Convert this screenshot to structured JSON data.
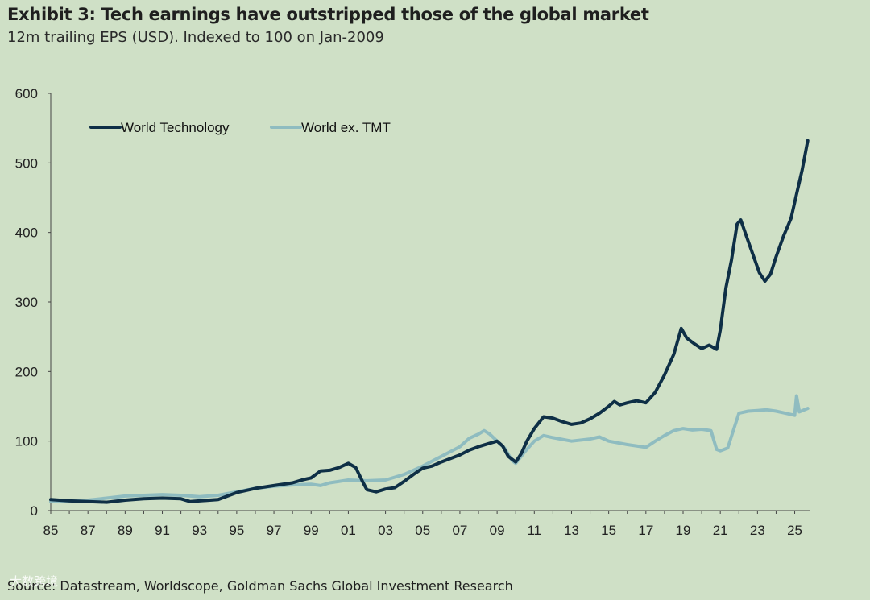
{
  "header": {
    "title": "Exhibit 3: Tech earnings have outstripped those of the global market",
    "subtitle": "12m trailing EPS (USD). Indexed to 100 on Jan-2009"
  },
  "footer": {
    "source": "Source: Datastream, Worldscope, Goldman Sachs Global Investment Research",
    "watermark": "大数跨境"
  },
  "colors": {
    "background": "#cfe0c6",
    "world_technology": "#0e2f46",
    "world_ex_tmt": "#8fbcc0",
    "axis": "#444444"
  },
  "chart_data": {
    "type": "line",
    "title": "Exhibit 3: Tech earnings have outstripped those of the global market",
    "subtitle": "12m trailing EPS (USD). Indexed to 100 on Jan-2009",
    "xlabel": "",
    "ylabel": "",
    "x_range": [
      1985,
      2025.8
    ],
    "ylim": [
      0,
      600
    ],
    "y_ticks": [
      0,
      100,
      200,
      300,
      400,
      500,
      600
    ],
    "x_tick_labels": [
      "85",
      "87",
      "89",
      "91",
      "93",
      "95",
      "97",
      "99",
      "01",
      "03",
      "05",
      "07",
      "09",
      "11",
      "13",
      "15",
      "17",
      "19",
      "21",
      "23",
      "25"
    ],
    "x_tick_values": [
      1985,
      1987,
      1989,
      1991,
      1993,
      1995,
      1997,
      1999,
      2001,
      2003,
      2005,
      2007,
      2009,
      2011,
      2013,
      2015,
      2017,
      2019,
      2021,
      2023,
      2025
    ],
    "grid": false,
    "legend_position": "top-left",
    "series": [
      {
        "name": "World Technology",
        "color": "#0e2f46",
        "points": [
          [
            1985.0,
            16
          ],
          [
            1986.0,
            14
          ],
          [
            1987.0,
            13
          ],
          [
            1988.0,
            12
          ],
          [
            1989.0,
            15
          ],
          [
            1990.0,
            17
          ],
          [
            1991.0,
            18
          ],
          [
            1992.0,
            17
          ],
          [
            1992.5,
            13
          ],
          [
            1993.0,
            14
          ],
          [
            1994.0,
            16
          ],
          [
            1995.0,
            26
          ],
          [
            1996.0,
            32
          ],
          [
            1997.0,
            36
          ],
          [
            1998.0,
            40
          ],
          [
            1998.5,
            44
          ],
          [
            1999.0,
            47
          ],
          [
            1999.5,
            57
          ],
          [
            2000.0,
            58
          ],
          [
            2000.5,
            62
          ],
          [
            2001.0,
            68
          ],
          [
            2001.4,
            62
          ],
          [
            2001.8,
            40
          ],
          [
            2002.0,
            30
          ],
          [
            2002.5,
            27
          ],
          [
            2003.0,
            31
          ],
          [
            2003.5,
            33
          ],
          [
            2004.0,
            42
          ],
          [
            2004.5,
            52
          ],
          [
            2005.0,
            61
          ],
          [
            2005.5,
            64
          ],
          [
            2006.0,
            70
          ],
          [
            2006.5,
            75
          ],
          [
            2007.0,
            80
          ],
          [
            2007.5,
            87
          ],
          [
            2008.0,
            92
          ],
          [
            2008.5,
            96
          ],
          [
            2009.0,
            100
          ],
          [
            2009.3,
            93
          ],
          [
            2009.6,
            78
          ],
          [
            2010.0,
            70
          ],
          [
            2010.3,
            82
          ],
          [
            2010.6,
            100
          ],
          [
            2011.0,
            118
          ],
          [
            2011.5,
            135
          ],
          [
            2012.0,
            133
          ],
          [
            2012.5,
            128
          ],
          [
            2013.0,
            124
          ],
          [
            2013.5,
            126
          ],
          [
            2014.0,
            132
          ],
          [
            2014.5,
            140
          ],
          [
            2015.0,
            150
          ],
          [
            2015.3,
            157
          ],
          [
            2015.6,
            152
          ],
          [
            2016.0,
            155
          ],
          [
            2016.5,
            158
          ],
          [
            2017.0,
            155
          ],
          [
            2017.5,
            170
          ],
          [
            2018.0,
            195
          ],
          [
            2018.5,
            225
          ],
          [
            2018.9,
            262
          ],
          [
            2019.2,
            248
          ],
          [
            2019.6,
            240
          ],
          [
            2020.0,
            233
          ],
          [
            2020.4,
            238
          ],
          [
            2020.8,
            232
          ],
          [
            2021.0,
            260
          ],
          [
            2021.3,
            320
          ],
          [
            2021.6,
            360
          ],
          [
            2021.9,
            412
          ],
          [
            2022.1,
            418
          ],
          [
            2022.4,
            395
          ],
          [
            2022.8,
            365
          ],
          [
            2023.1,
            342
          ],
          [
            2023.4,
            330
          ],
          [
            2023.7,
            340
          ],
          [
            2024.0,
            365
          ],
          [
            2024.4,
            395
          ],
          [
            2024.8,
            420
          ],
          [
            2025.1,
            455
          ],
          [
            2025.4,
            490
          ],
          [
            2025.7,
            532
          ]
        ]
      },
      {
        "name": "World ex. TMT",
        "color": "#8fbcc0",
        "points": [
          [
            1985.0,
            13
          ],
          [
            1986.0,
            14
          ],
          [
            1987.0,
            15
          ],
          [
            1988.0,
            18
          ],
          [
            1989.0,
            21
          ],
          [
            1990.0,
            22
          ],
          [
            1991.0,
            23
          ],
          [
            1992.0,
            22
          ],
          [
            1993.0,
            20
          ],
          [
            1994.0,
            22
          ],
          [
            1995.0,
            27
          ],
          [
            1996.0,
            32
          ],
          [
            1997.0,
            35
          ],
          [
            1998.0,
            37
          ],
          [
            1999.0,
            38
          ],
          [
            1999.5,
            36
          ],
          [
            2000.0,
            40
          ],
          [
            2001.0,
            44
          ],
          [
            2002.0,
            43
          ],
          [
            2003.0,
            44
          ],
          [
            2004.0,
            52
          ],
          [
            2005.0,
            64
          ],
          [
            2006.0,
            78
          ],
          [
            2007.0,
            92
          ],
          [
            2007.5,
            104
          ],
          [
            2008.0,
            110
          ],
          [
            2008.3,
            115
          ],
          [
            2008.6,
            110
          ],
          [
            2009.0,
            100
          ],
          [
            2009.4,
            90
          ],
          [
            2009.8,
            72
          ],
          [
            2010.0,
            68
          ],
          [
            2010.5,
            85
          ],
          [
            2011.0,
            100
          ],
          [
            2011.5,
            108
          ],
          [
            2012.0,
            105
          ],
          [
            2013.0,
            100
          ],
          [
            2014.0,
            103
          ],
          [
            2014.5,
            106
          ],
          [
            2015.0,
            100
          ],
          [
            2016.0,
            95
          ],
          [
            2017.0,
            91
          ],
          [
            2017.5,
            100
          ],
          [
            2018.0,
            108
          ],
          [
            2018.5,
            115
          ],
          [
            2019.0,
            118
          ],
          [
            2019.5,
            116
          ],
          [
            2020.0,
            117
          ],
          [
            2020.5,
            115
          ],
          [
            2020.8,
            88
          ],
          [
            2021.0,
            86
          ],
          [
            2021.4,
            90
          ],
          [
            2021.7,
            115
          ],
          [
            2022.0,
            140
          ],
          [
            2022.5,
            143
          ],
          [
            2023.0,
            144
          ],
          [
            2023.5,
            145
          ],
          [
            2024.0,
            143
          ],
          [
            2024.5,
            140
          ],
          [
            2025.0,
            137
          ],
          [
            2025.1,
            165
          ],
          [
            2025.25,
            142
          ],
          [
            2025.7,
            147
          ]
        ]
      }
    ]
  }
}
